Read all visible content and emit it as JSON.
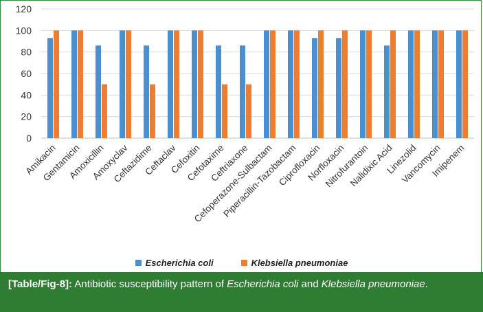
{
  "chart_data": {
    "type": "bar",
    "categories": [
      "Amikacin",
      "Gentamicin",
      "Amoxicillin",
      "Amoxyclav",
      "Ceftazidime",
      "Ceftaclav",
      "Cefoxitin",
      "Cefotaxime",
      "Ceftriaxone",
      "Cefoperazone-Sulbactam",
      "Piperacillin-Tazobactam",
      "Ciprofloxacin",
      "Norfloxacin",
      "Nitrofurantoin",
      "Nalidixic Acid",
      "Linezolid",
      "Vancomycin",
      "Imipenem"
    ],
    "series": [
      {
        "name": "Escherichia coli",
        "color": "#4a8fd0",
        "values": [
          93,
          100,
          86,
          100,
          86,
          100,
          100,
          86,
          86,
          100,
          100,
          93,
          93,
          100,
          86,
          100,
          100,
          100
        ]
      },
      {
        "name": "Klebsiella pneumoniae",
        "color": "#ed7d31",
        "values": [
          100,
          100,
          50,
          100,
          50,
          100,
          100,
          50,
          50,
          100,
          100,
          100,
          100,
          100,
          100,
          100,
          100,
          100
        ]
      }
    ],
    "ylim": [
      0,
      120
    ],
    "yticks": [
      0,
      20,
      40,
      60,
      80,
      100,
      120
    ],
    "grid": true,
    "legend_position": "bottom"
  },
  "caption": {
    "label": "[Table/Fig-8]:",
    "text_1": " Antibiotic susceptibility pattern of ",
    "species_1": "Escherichia coli",
    "text_2": " and ",
    "species_2": "Klebsiella pneumoniae",
    "text_3": "."
  }
}
